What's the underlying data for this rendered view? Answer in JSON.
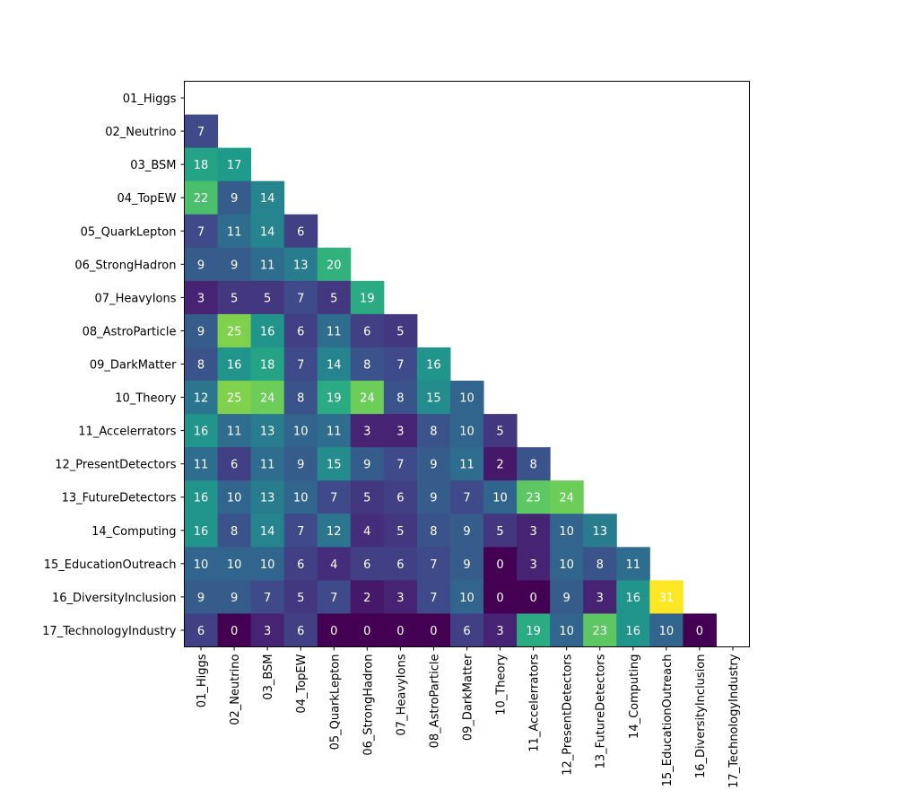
{
  "chart_data": {
    "type": "heatmap",
    "title": "",
    "xlabel": "",
    "ylabel": "",
    "colormap": "viridis",
    "color_range": [
      0,
      31
    ],
    "text_color": "#ffffff",
    "labels": [
      "01_Higgs",
      "02_Neutrino",
      "03_BSM",
      "04_TopEW",
      "05_QuarkLepton",
      "06_StrongHadron",
      "07_HeavyIons",
      "08_AstroParticle",
      "09_DarkMatter",
      "10_Theory",
      "11_Accelerrators",
      "12_PresentDetectors",
      "13_FutureDetectors",
      "14_Computing",
      "15_EducationOutreach",
      "16_DiversityInclusion",
      "17_TechnologyIndustry"
    ],
    "lower_triangle_rows": [
      [],
      [
        7
      ],
      [
        18,
        17
      ],
      [
        22,
        9,
        14
      ],
      [
        7,
        11,
        14,
        6
      ],
      [
        9,
        9,
        11,
        13,
        20
      ],
      [
        3,
        5,
        5,
        7,
        5,
        19
      ],
      [
        9,
        25,
        16,
        6,
        11,
        6,
        5
      ],
      [
        8,
        16,
        18,
        7,
        14,
        8,
        7,
        16
      ],
      [
        12,
        25,
        24,
        8,
        19,
        24,
        8,
        15,
        10
      ],
      [
        16,
        11,
        13,
        10,
        11,
        3,
        3,
        8,
        10,
        5
      ],
      [
        11,
        6,
        11,
        9,
        15,
        9,
        7,
        9,
        11,
        2,
        8
      ],
      [
        16,
        10,
        13,
        10,
        7,
        5,
        6,
        9,
        7,
        10,
        23,
        24
      ],
      [
        16,
        8,
        14,
        7,
        12,
        4,
        5,
        8,
        9,
        5,
        3,
        10,
        13
      ],
      [
        10,
        10,
        10,
        6,
        4,
        6,
        6,
        7,
        9,
        0,
        3,
        10,
        8,
        11
      ],
      [
        9,
        9,
        7,
        5,
        7,
        2,
        3,
        7,
        10,
        0,
        0,
        9,
        3,
        16,
        31
      ],
      [
        6,
        0,
        3,
        6,
        0,
        0,
        0,
        0,
        6,
        3,
        19,
        10,
        23,
        16,
        10,
        0
      ]
    ]
  }
}
